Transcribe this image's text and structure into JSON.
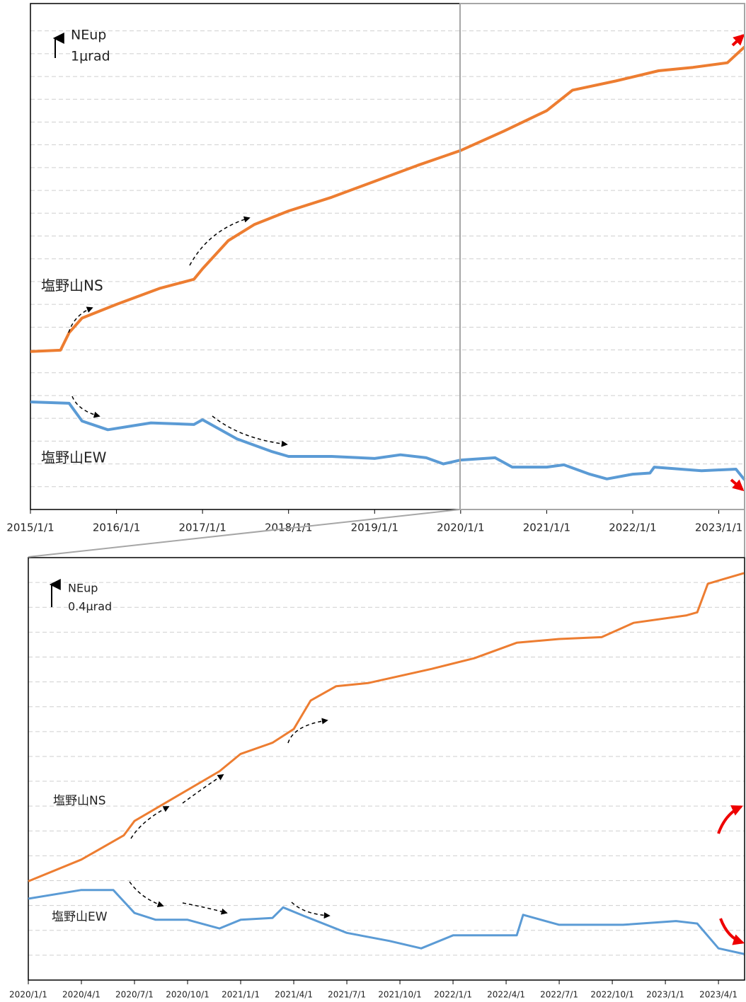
{
  "chart_data": [
    {
      "type": "line",
      "annotations": [
        "NEup",
        "1μrad"
      ],
      "xlim": [
        2015,
        2023.3
      ],
      "xticks": [
        {
          "value": 2015,
          "label": "2015/1/1"
        },
        {
          "value": 2016,
          "label": "2016/1/1"
        },
        {
          "value": 2017,
          "label": "2017/1/1"
        },
        {
          "value": 2018,
          "label": "2018/1/1"
        },
        {
          "value": 2019,
          "label": "2019/1/1"
        },
        {
          "value": 2020,
          "label": "2020/1/1"
        },
        {
          "value": 2021,
          "label": "2021/1/1"
        },
        {
          "value": 2022,
          "label": "2022/1/1"
        },
        {
          "value": 2023,
          "label": "2023/1/1"
        }
      ],
      "ylim": [
        0,
        22.2
      ],
      "yticks": [
        1,
        2,
        3,
        4,
        5,
        6,
        7,
        8,
        9,
        10,
        11,
        12,
        13,
        14,
        15,
        16,
        17,
        18,
        19,
        20,
        21
      ],
      "grid": true,
      "series": [
        {
          "name": "塩野山NS",
          "color": "#ed7d31",
          "x": [
            2015,
            2015.35,
            2015.45,
            2015.6,
            2016,
            2016.5,
            2016.9,
            2017,
            2017.3,
            2017.6,
            2018,
            2018.5,
            2019,
            2019.5,
            2020,
            2020.5,
            2021,
            2021.3,
            2021.8,
            2022.3,
            2022.7,
            2023.1,
            2023.3
          ],
          "values": [
            6.93,
            6.99,
            7.76,
            8.4,
            9.0,
            9.7,
            10.1,
            10.56,
            11.8,
            12.5,
            13.1,
            13.7,
            14.4,
            15.1,
            15.75,
            16.6,
            17.5,
            18.4,
            18.8,
            19.25,
            19.4,
            19.6,
            20.3
          ]
        },
        {
          "name": "塩野山EW",
          "color": "#5b9bd5",
          "x": [
            2015,
            2015.45,
            2015.6,
            2015.9,
            2016.4,
            2016.9,
            2017,
            2017.4,
            2017.8,
            2018,
            2018.5,
            2019,
            2019.3,
            2019.6,
            2019.8,
            2020,
            2020.4,
            2020.6,
            2021,
            2021.2,
            2021.5,
            2021.7,
            2022,
            2022.2,
            2022.25,
            2022.8,
            2023.2,
            2023.3
          ],
          "values": [
            4.72,
            4.66,
            3.88,
            3.5,
            3.8,
            3.73,
            3.94,
            3.1,
            2.55,
            2.33,
            2.33,
            2.24,
            2.4,
            2.27,
            2.0,
            2.17,
            2.27,
            1.86,
            1.86,
            1.96,
            1.55,
            1.34,
            1.55,
            1.6,
            1.86,
            1.7,
            1.77,
            1.3
          ]
        }
      ]
    },
    {
      "type": "line",
      "annotations": [
        "NEup",
        "0.4μrad"
      ],
      "xlim": [
        2020,
        2023.373
      ],
      "xticks": [
        {
          "value": 2020,
          "label": "2020/1/1"
        },
        {
          "value": 2020.25,
          "label": "2020/4/1"
        },
        {
          "value": 2020.5,
          "label": "2020/7/1"
        },
        {
          "value": 2020.75,
          "label": "2020/10/1"
        },
        {
          "value": 2021,
          "label": "2021/1/1"
        },
        {
          "value": 2021.25,
          "label": "2021/4/1"
        },
        {
          "value": 2021.5,
          "label": "2021/7/1"
        },
        {
          "value": 2021.75,
          "label": "2021/10/1"
        },
        {
          "value": 2022,
          "label": "2022/1/1"
        },
        {
          "value": 2022.25,
          "label": "2022/4/1"
        },
        {
          "value": 2022.5,
          "label": "2022/7/1"
        },
        {
          "value": 2022.75,
          "label": "2022/10/1"
        },
        {
          "value": 2023,
          "label": "2023/1/1"
        },
        {
          "value": 2023.25,
          "label": "2023/4/1"
        }
      ],
      "ylim": [
        0,
        6.8
      ],
      "yticks": [
        0.4,
        0.8,
        1.2,
        1.6,
        2,
        2.4,
        2.8,
        3.2,
        3.6,
        4,
        4.4,
        4.8,
        5.2,
        5.6,
        6,
        6.4
      ],
      "grid": true,
      "series": [
        {
          "name": "塩野山NS",
          "color": "#ed7d31",
          "x": [
            2020,
            2020.25,
            2020.45,
            2020.5,
            2020.7,
            2020.9,
            2021,
            2021.15,
            2021.25,
            2021.33,
            2021.45,
            2021.6,
            2021.9,
            2022.1,
            2022.3,
            2022.5,
            2022.7,
            2022.85,
            2023.1,
            2023.15,
            2023.2,
            2023.37
          ],
          "values": [
            1.59,
            1.94,
            2.33,
            2.56,
            2.96,
            3.36,
            3.64,
            3.82,
            4.04,
            4.5,
            4.73,
            4.78,
            5.01,
            5.18,
            5.43,
            5.49,
            5.52,
            5.75,
            5.87,
            5.92,
            6.38,
            6.55
          ]
        },
        {
          "name": "塩野山EW",
          "color": "#5b9bd5",
          "x": [
            2020,
            2020.25,
            2020.4,
            2020.5,
            2020.6,
            2020.75,
            2020.9,
            2021,
            2021.15,
            2021.2,
            2021.3,
            2021.5,
            2021.7,
            2021.85,
            2022,
            2022.3,
            2022.33,
            2022.5,
            2022.8,
            2023.05,
            2023.15,
            2023.25,
            2023.37
          ],
          "values": [
            1.31,
            1.45,
            1.45,
            1.08,
            0.97,
            0.97,
            0.83,
            0.97,
            1.0,
            1.17,
            1.03,
            0.76,
            0.63,
            0.51,
            0.72,
            0.72,
            1.05,
            0.89,
            0.89,
            0.95,
            0.91,
            0.51,
            0.42
          ]
        }
      ]
    }
  ]
}
